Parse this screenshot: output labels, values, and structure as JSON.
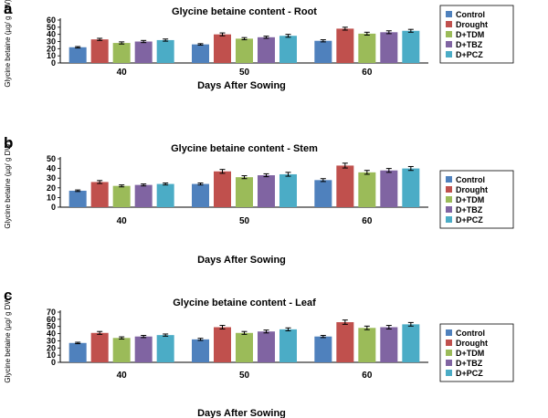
{
  "colors": {
    "Control": "#4f81bd",
    "Drought": "#c0504d",
    "D+TDM": "#9bbb59",
    "D+TBZ": "#8064a2",
    "D+PCZ": "#4bacc6"
  },
  "chart_data": [
    {
      "panel": "a",
      "type": "bar",
      "title": "Glycine  betaine content - Root",
      "xlabel": "Days After Sowing",
      "ylabel": "Glycine betaine (µg/ g DW)",
      "ylim": [
        0,
        60
      ],
      "yticks": [
        0,
        10,
        20,
        30,
        40,
        50,
        60
      ],
      "categories": [
        "40",
        "50",
        "60"
      ],
      "legend_position": "right",
      "series": [
        {
          "name": "Control",
          "values": [
            22,
            26,
            31
          ],
          "errors": [
            1,
            1,
            1.5
          ]
        },
        {
          "name": "Drought",
          "values": [
            33,
            40,
            48
          ],
          "errors": [
            1.5,
            2,
            2
          ]
        },
        {
          "name": "D+TDM",
          "values": [
            28,
            34,
            41
          ],
          "errors": [
            1.5,
            1.5,
            2
          ]
        },
        {
          "name": "D+TBZ",
          "values": [
            30,
            36,
            43
          ],
          "errors": [
            1.5,
            1.5,
            2
          ]
        },
        {
          "name": "D+PCZ",
          "values": [
            32,
            38,
            45
          ],
          "errors": [
            1.5,
            2,
            2
          ]
        }
      ]
    },
    {
      "panel": "b",
      "type": "bar",
      "title": "Glycine  betaine content - Stem",
      "xlabel": "Days After Sowing",
      "ylabel": "Glycine betaine (µg/ g DW)",
      "ylim": [
        0,
        50
      ],
      "yticks": [
        0,
        10,
        20,
        30,
        40,
        50
      ],
      "categories": [
        "40",
        "50",
        "60"
      ],
      "legend_position": "right",
      "series": [
        {
          "name": "Control",
          "values": [
            17,
            24,
            28
          ],
          "errors": [
            0.8,
            1,
            1.5
          ]
        },
        {
          "name": "Drought",
          "values": [
            26,
            37,
            43
          ],
          "errors": [
            1.5,
            2,
            2.5
          ]
        },
        {
          "name": "D+TDM",
          "values": [
            22,
            31,
            36
          ],
          "errors": [
            1,
            1.5,
            2
          ]
        },
        {
          "name": "D+TBZ",
          "values": [
            23,
            33,
            38
          ],
          "errors": [
            1,
            1.5,
            2
          ]
        },
        {
          "name": "D+PCZ",
          "values": [
            24,
            34,
            40
          ],
          "errors": [
            1,
            2,
            2
          ]
        }
      ]
    },
    {
      "panel": "c",
      "type": "bar",
      "title": "Glycine  betaine content - Leaf",
      "xlabel": "Days After Sowing",
      "ylabel": "Glycine betaine (µg/ g DW)",
      "ylim": [
        0,
        70
      ],
      "yticks": [
        0,
        10,
        20,
        30,
        40,
        50,
        60,
        70
      ],
      "categories": [
        "40",
        "50",
        "60"
      ],
      "legend_position": "right",
      "series": [
        {
          "name": "Control",
          "values": [
            27,
            32,
            36
          ],
          "errors": [
            1,
            1.5,
            1.5
          ]
        },
        {
          "name": "Drought",
          "values": [
            41,
            49,
            56
          ],
          "errors": [
            2,
            2.5,
            3
          ]
        },
        {
          "name": "D+TDM",
          "values": [
            34,
            41,
            48
          ],
          "errors": [
            1.5,
            2,
            2.5
          ]
        },
        {
          "name": "D+TBZ",
          "values": [
            36,
            43,
            49
          ],
          "errors": [
            1.5,
            2,
            2.5
          ]
        },
        {
          "name": "D+PCZ",
          "values": [
            38,
            46,
            53
          ],
          "errors": [
            1.5,
            2,
            2.5
          ]
        }
      ]
    }
  ]
}
